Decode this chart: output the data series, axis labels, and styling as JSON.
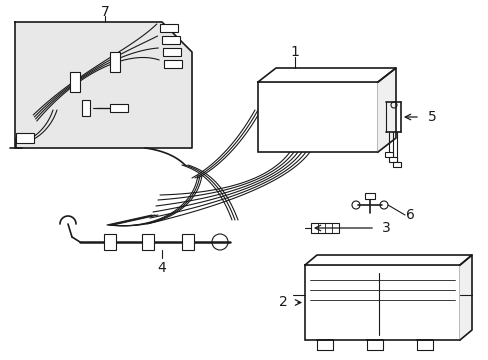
{
  "bg_color": "#ffffff",
  "line_color": "#1a1a1a",
  "fill_callout": "#e8e8e8",
  "figsize": [
    4.89,
    3.6
  ],
  "dpi": 100
}
